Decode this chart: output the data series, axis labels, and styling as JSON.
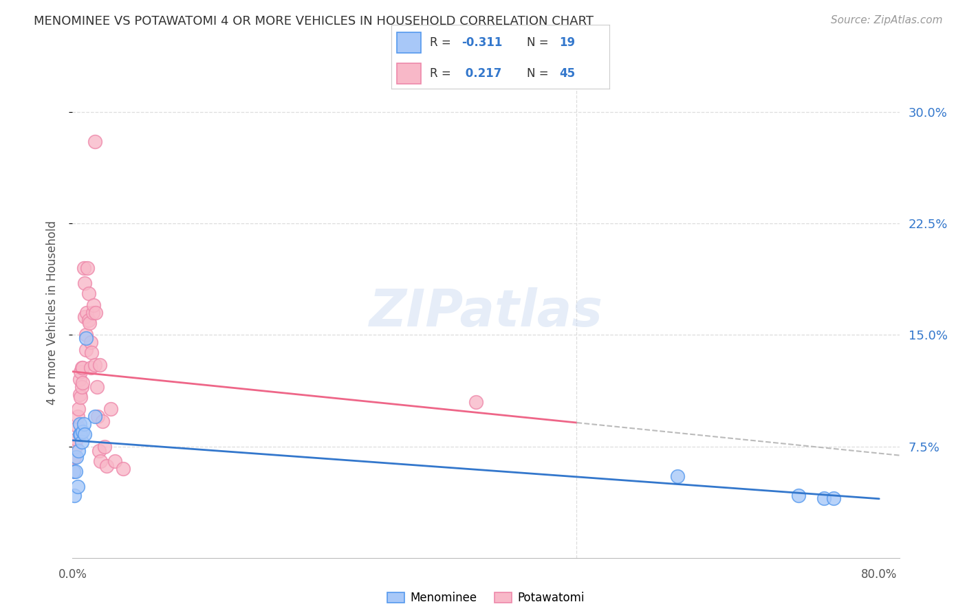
{
  "title": "MENOMINEE VS POTAWATOMI 4 OR MORE VEHICLES IN HOUSEHOLD CORRELATION CHART",
  "source": "Source: ZipAtlas.com",
  "ylabel": "4 or more Vehicles in Household",
  "ytick_labels": [
    "7.5%",
    "15.0%",
    "22.5%",
    "30.0%"
  ],
  "ytick_values": [
    0.075,
    0.15,
    0.225,
    0.3
  ],
  "xlim": [
    0.0,
    0.82
  ],
  "ylim": [
    0.0,
    0.33
  ],
  "watermark": "ZIPatlas",
  "legend_r_menominee": "-0.311",
  "legend_n_menominee": "19",
  "legend_r_potawatomi": "0.217",
  "legend_n_potawatomi": "45",
  "menominee_color": "#a8c8f8",
  "potawatomi_color": "#f8b8c8",
  "menominee_edge_color": "#5599ee",
  "potawatomi_edge_color": "#ee88aa",
  "menominee_line_color": "#3377cc",
  "potawatomi_line_color": "#ee6688",
  "legend_text_color": "#3377cc",
  "menominee_x": [
    0.001,
    0.002,
    0.003,
    0.004,
    0.005,
    0.006,
    0.007,
    0.007,
    0.008,
    0.009,
    0.01,
    0.011,
    0.012,
    0.013,
    0.022,
    0.6,
    0.72,
    0.745,
    0.755
  ],
  "menominee_y": [
    0.058,
    0.042,
    0.058,
    0.068,
    0.048,
    0.072,
    0.083,
    0.09,
    0.083,
    0.078,
    0.085,
    0.09,
    0.083,
    0.148,
    0.095,
    0.055,
    0.042,
    0.04,
    0.04
  ],
  "potawatomi_x": [
    0.001,
    0.002,
    0.003,
    0.004,
    0.005,
    0.005,
    0.006,
    0.007,
    0.007,
    0.008,
    0.008,
    0.009,
    0.009,
    0.01,
    0.01,
    0.011,
    0.012,
    0.012,
    0.013,
    0.013,
    0.014,
    0.015,
    0.016,
    0.016,
    0.017,
    0.018,
    0.018,
    0.019,
    0.02,
    0.021,
    0.022,
    0.023,
    0.024,
    0.025,
    0.026,
    0.027,
    0.028,
    0.03,
    0.032,
    0.034,
    0.038,
    0.042,
    0.05,
    0.4,
    0.022
  ],
  "potawatomi_y": [
    0.058,
    0.068,
    0.075,
    0.08,
    0.088,
    0.095,
    0.1,
    0.11,
    0.12,
    0.108,
    0.125,
    0.115,
    0.128,
    0.118,
    0.128,
    0.195,
    0.185,
    0.162,
    0.15,
    0.14,
    0.165,
    0.195,
    0.178,
    0.16,
    0.158,
    0.145,
    0.128,
    0.138,
    0.165,
    0.17,
    0.13,
    0.165,
    0.115,
    0.095,
    0.072,
    0.13,
    0.065,
    0.092,
    0.075,
    0.062,
    0.1,
    0.065,
    0.06,
    0.105,
    0.28
  ]
}
